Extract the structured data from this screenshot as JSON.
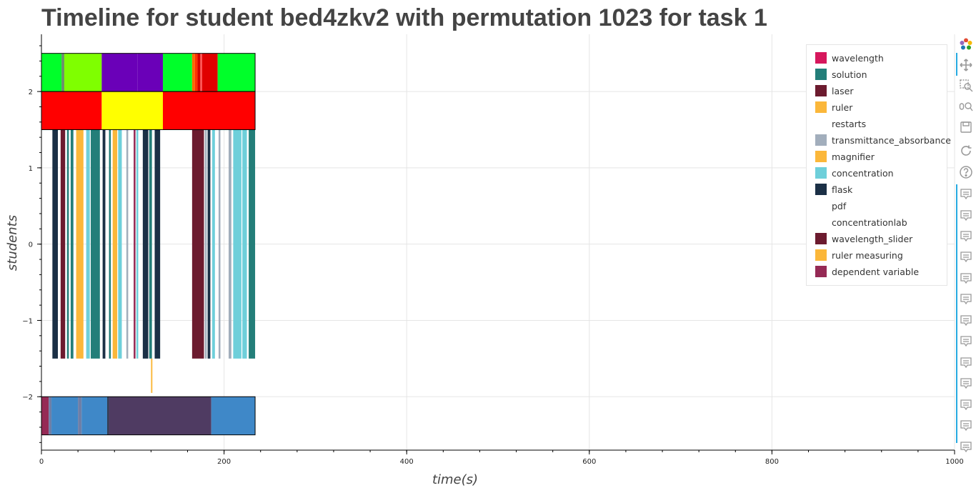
{
  "title": "Timeline for student bed4zkv2 with permutation 1023 for task 1",
  "chart_data": {
    "type": "bar",
    "orientation": "horizontal-timeline",
    "title": "Timeline for student bed4zkv2 with permutation 1023 for task 1",
    "xlabel": "time(s)",
    "ylabel": "students",
    "xlim": [
      0,
      1000
    ],
    "ylim": [
      -2.7,
      2.75
    ],
    "x_ticks": [
      0,
      200,
      400,
      600,
      800,
      1000
    ],
    "y_ticks": [
      -2,
      -1,
      0,
      1,
      2
    ],
    "y_tick_labels": [
      "−2",
      "−1",
      "0",
      "1",
      "2"
    ],
    "grid": true,
    "legend_position": "top-right",
    "legend": [
      {
        "name": "wavelength",
        "color": "#d6175c"
      },
      {
        "name": "solution",
        "color": "#237e79"
      },
      {
        "name": "laser",
        "color": "#6c1b2f"
      },
      {
        "name": "ruler",
        "color": "#fbb73a"
      },
      {
        "name": "restarts",
        "color": "#ffffff"
      },
      {
        "name": "transmittance_absorbance",
        "color": "#a2aebc"
      },
      {
        "name": "magnifier",
        "color": "#fbb73a"
      },
      {
        "name": "concentration",
        "color": "#6ecfda"
      },
      {
        "name": "flask",
        "color": "#1b3046"
      },
      {
        "name": "pdf",
        "color": "#ffffff"
      },
      {
        "name": "concentrationlab",
        "color": "#ffffff"
      },
      {
        "name": "wavelength_slider",
        "color": "#6c1b2f"
      },
      {
        "name": "ruler measuring",
        "color": "#fbb73a"
      },
      {
        "name": "dependent variable",
        "color": "#952a55"
      }
    ],
    "rows": [
      {
        "y_range": [
          2.0,
          2.5
        ],
        "segments": [
          {
            "start": 0,
            "end": 22,
            "color": "#00ff2a"
          },
          {
            "start": 22,
            "end": 25,
            "color": "#6b8e6b"
          },
          {
            "start": 25,
            "end": 66,
            "color": "#7fff00"
          },
          {
            "start": 66,
            "end": 105,
            "color": "#6a00b8"
          },
          {
            "start": 105,
            "end": 133,
            "color": "#6a00b8"
          },
          {
            "start": 133,
            "end": 165,
            "color": "#00ff2a"
          },
          {
            "start": 165,
            "end": 168,
            "color": "#ff6a00"
          },
          {
            "start": 168,
            "end": 171,
            "color": "#ff3300"
          },
          {
            "start": 171,
            "end": 174,
            "color": "#d40000"
          },
          {
            "start": 174,
            "end": 176,
            "color": "#ff5555"
          },
          {
            "start": 176,
            "end": 193,
            "color": "#e00000"
          },
          {
            "start": 193,
            "end": 234,
            "color": "#00ff2a"
          }
        ]
      },
      {
        "y_range": [
          1.5,
          2.0
        ],
        "segments": [
          {
            "start": 0,
            "end": 66,
            "color": "#ff0000"
          },
          {
            "start": 66,
            "end": 133,
            "color": "#ffff00"
          },
          {
            "start": 133,
            "end": 234,
            "color": "#ff0000"
          }
        ]
      },
      {
        "y_range": [
          -1.5,
          1.5
        ],
        "segments": [
          {
            "start": 12,
            "end": 18,
            "color": "#1b3046"
          },
          {
            "start": 21,
            "end": 26,
            "color": "#6c1b2f"
          },
          {
            "start": 28,
            "end": 30,
            "color": "#237e79"
          },
          {
            "start": 32,
            "end": 35,
            "color": "#237e79"
          },
          {
            "start": 38,
            "end": 46,
            "color": "#fbb73a"
          },
          {
            "start": 49,
            "end": 53,
            "color": "#6ecfda"
          },
          {
            "start": 54,
            "end": 64,
            "color": "#237e79"
          },
          {
            "start": 67,
            "end": 70,
            "color": "#1b3046"
          },
          {
            "start": 74,
            "end": 76,
            "color": "#237e79"
          },
          {
            "start": 78,
            "end": 83,
            "color": "#fbb73a"
          },
          {
            "start": 84,
            "end": 88,
            "color": "#6ecfda"
          },
          {
            "start": 93,
            "end": 95,
            "color": "#a2aebc"
          },
          {
            "start": 101,
            "end": 103,
            "color": "#952a55"
          },
          {
            "start": 104,
            "end": 106,
            "color": "#6ecfda"
          },
          {
            "start": 111,
            "end": 117,
            "color": "#1b3046"
          },
          {
            "start": 118,
            "end": 121,
            "color": "#237e79"
          },
          {
            "start": 124,
            "end": 130,
            "color": "#1b3046"
          },
          {
            "start": 165,
            "end": 178,
            "color": "#6c1b2f"
          },
          {
            "start": 179,
            "end": 181,
            "color": "#a2aebc"
          },
          {
            "start": 182,
            "end": 185,
            "color": "#1b3046"
          },
          {
            "start": 187,
            "end": 190,
            "color": "#6ecfda"
          },
          {
            "start": 194,
            "end": 196,
            "color": "#a2aebc"
          },
          {
            "start": 205,
            "end": 208,
            "color": "#a2aebc"
          },
          {
            "start": 210,
            "end": 219,
            "color": "#6ecfda"
          },
          {
            "start": 220,
            "end": 225,
            "color": "#6ecfda"
          },
          {
            "start": 227,
            "end": 234,
            "color": "#237e79"
          }
        ]
      },
      {
        "y_range": [
          -2.0,
          -1.5
        ],
        "segments": [
          {
            "start": 120,
            "end": 121.5,
            "color": "#fbb73a",
            "y_range": [
              -1.95,
              -1.5
            ]
          }
        ]
      },
      {
        "y_range": [
          -2.5,
          -2.0
        ],
        "segments": [
          {
            "start": 0,
            "end": 8,
            "color": "#952a55"
          },
          {
            "start": 8,
            "end": 11,
            "color": "#6e7fa8"
          },
          {
            "start": 11,
            "end": 40,
            "color": "#3f88c8"
          },
          {
            "start": 40,
            "end": 44,
            "color": "#6e7fa8"
          },
          {
            "start": 44,
            "end": 72,
            "color": "#3f88c8"
          },
          {
            "start": 72,
            "end": 74,
            "color": "#333c52"
          },
          {
            "start": 74,
            "end": 186,
            "color": "#4f3b62"
          },
          {
            "start": 186,
            "end": 234,
            "color": "#3f88c8"
          }
        ]
      }
    ],
    "row_frames": [
      {
        "x_range": [
          0,
          234
        ],
        "y_range": [
          2.0,
          2.5
        ]
      },
      {
        "x_range": [
          0,
          234
        ],
        "y_range": [
          1.5,
          2.0
        ]
      },
      {
        "x_range": [
          0,
          234
        ],
        "y_range": [
          -2.5,
          -2.0
        ]
      }
    ]
  },
  "toolbar": {
    "tools": [
      {
        "name": "bokeh-logo-icon",
        "active": false
      },
      {
        "name": "pan-icon",
        "active": true
      },
      {
        "name": "box-zoom-icon",
        "active": false
      },
      {
        "name": "wheel-zoom-icon",
        "active": false
      },
      {
        "name": "save-icon",
        "active": false
      },
      {
        "name": "reset-icon",
        "active": false
      },
      {
        "name": "help-icon",
        "active": false
      },
      {
        "name": "hover-icon",
        "active": true
      },
      {
        "name": "hover-icon",
        "active": true
      },
      {
        "name": "hover-icon",
        "active": true
      },
      {
        "name": "hover-icon",
        "active": true
      },
      {
        "name": "hover-icon",
        "active": true
      },
      {
        "name": "hover-icon",
        "active": true
      },
      {
        "name": "hover-icon",
        "active": true
      },
      {
        "name": "hover-icon",
        "active": true
      },
      {
        "name": "hover-icon",
        "active": true
      },
      {
        "name": "hover-icon",
        "active": true
      },
      {
        "name": "hover-icon",
        "active": true
      },
      {
        "name": "hover-icon",
        "active": true
      },
      {
        "name": "hover-icon",
        "active": true
      },
      {
        "name": "hover-icon",
        "active": true
      }
    ],
    "more_label": "⋯"
  }
}
